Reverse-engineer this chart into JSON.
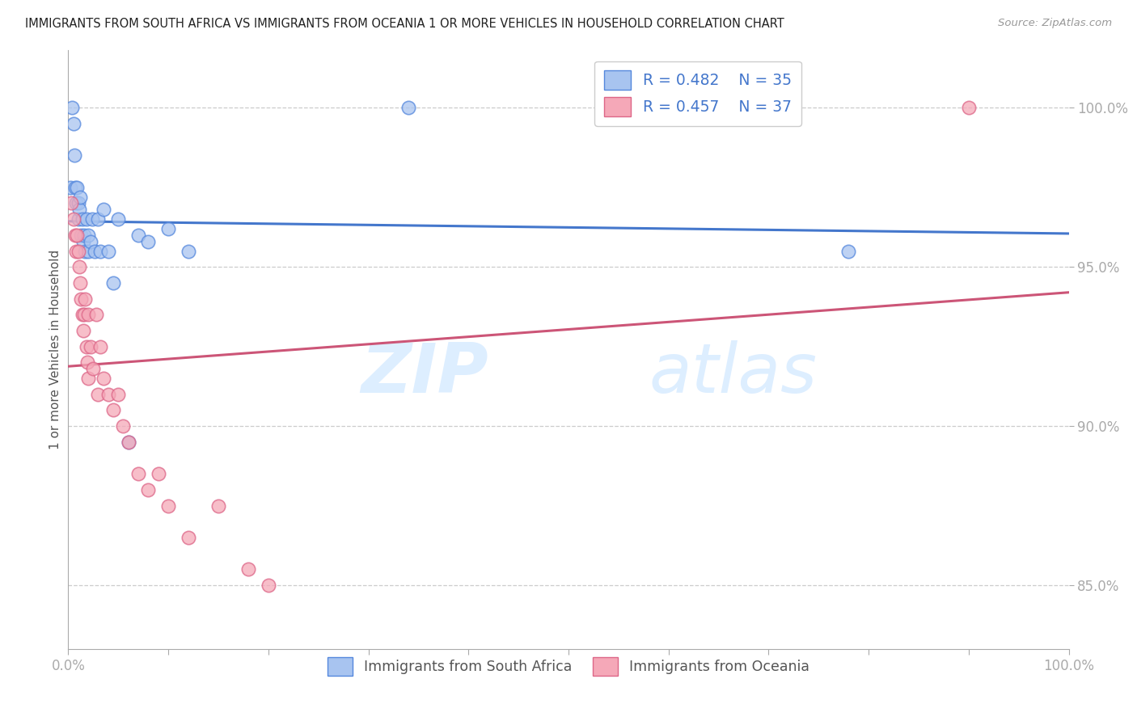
{
  "title": "IMMIGRANTS FROM SOUTH AFRICA VS IMMIGRANTS FROM OCEANIA 1 OR MORE VEHICLES IN HOUSEHOLD CORRELATION CHART",
  "source": "Source: ZipAtlas.com",
  "ylabel": "1 or more Vehicles in Household",
  "legend_blue_r": "R = 0.482",
  "legend_blue_n": "N = 35",
  "legend_pink_r": "R = 0.457",
  "legend_pink_n": "N = 37",
  "legend_blue_label": "Immigrants from South Africa",
  "legend_pink_label": "Immigrants from Oceania",
  "blue_color": "#a8c4f0",
  "pink_color": "#f5a8b8",
  "blue_edge_color": "#5588dd",
  "pink_edge_color": "#dd6688",
  "blue_line_color": "#4477cc",
  "pink_line_color": "#cc5577",
  "watermark_zip": "ZIP",
  "watermark_atlas": "atlas",
  "watermark_color": "#ddeeff",
  "blue_x": [
    0.2,
    0.4,
    0.5,
    0.6,
    0.7,
    0.8,
    0.9,
    1.0,
    1.0,
    1.1,
    1.2,
    1.3,
    1.4,
    1.5,
    1.6,
    1.7,
    1.8,
    2.0,
    2.0,
    2.2,
    2.4,
    2.6,
    3.0,
    3.2,
    3.5,
    4.0,
    4.5,
    5.0,
    6.0,
    7.0,
    8.0,
    10.0,
    12.0,
    34.0,
    78.0
  ],
  "blue_y": [
    97.5,
    100.0,
    99.5,
    98.5,
    97.5,
    97.0,
    97.5,
    96.5,
    97.0,
    96.8,
    97.2,
    96.0,
    96.5,
    95.8,
    96.0,
    95.5,
    96.5,
    95.5,
    96.0,
    95.8,
    96.5,
    95.5,
    96.5,
    95.5,
    96.8,
    95.5,
    94.5,
    96.5,
    89.5,
    96.0,
    95.8,
    96.2,
    95.5,
    100.0,
    95.5
  ],
  "pink_x": [
    0.3,
    0.5,
    0.7,
    0.8,
    0.9,
    1.0,
    1.1,
    1.2,
    1.3,
    1.4,
    1.5,
    1.6,
    1.7,
    1.8,
    1.9,
    2.0,
    2.0,
    2.2,
    2.5,
    2.8,
    3.0,
    3.2,
    3.5,
    4.0,
    4.5,
    5.0,
    5.5,
    6.0,
    7.0,
    8.0,
    9.0,
    10.0,
    12.0,
    15.0,
    18.0,
    20.0,
    90.0
  ],
  "pink_y": [
    97.0,
    96.5,
    96.0,
    95.5,
    96.0,
    95.5,
    95.0,
    94.5,
    94.0,
    93.5,
    93.0,
    93.5,
    94.0,
    92.5,
    92.0,
    93.5,
    91.5,
    92.5,
    91.8,
    93.5,
    91.0,
    92.5,
    91.5,
    91.0,
    90.5,
    91.0,
    90.0,
    89.5,
    88.5,
    88.0,
    88.5,
    87.5,
    86.5,
    87.5,
    85.5,
    85.0,
    100.0
  ]
}
